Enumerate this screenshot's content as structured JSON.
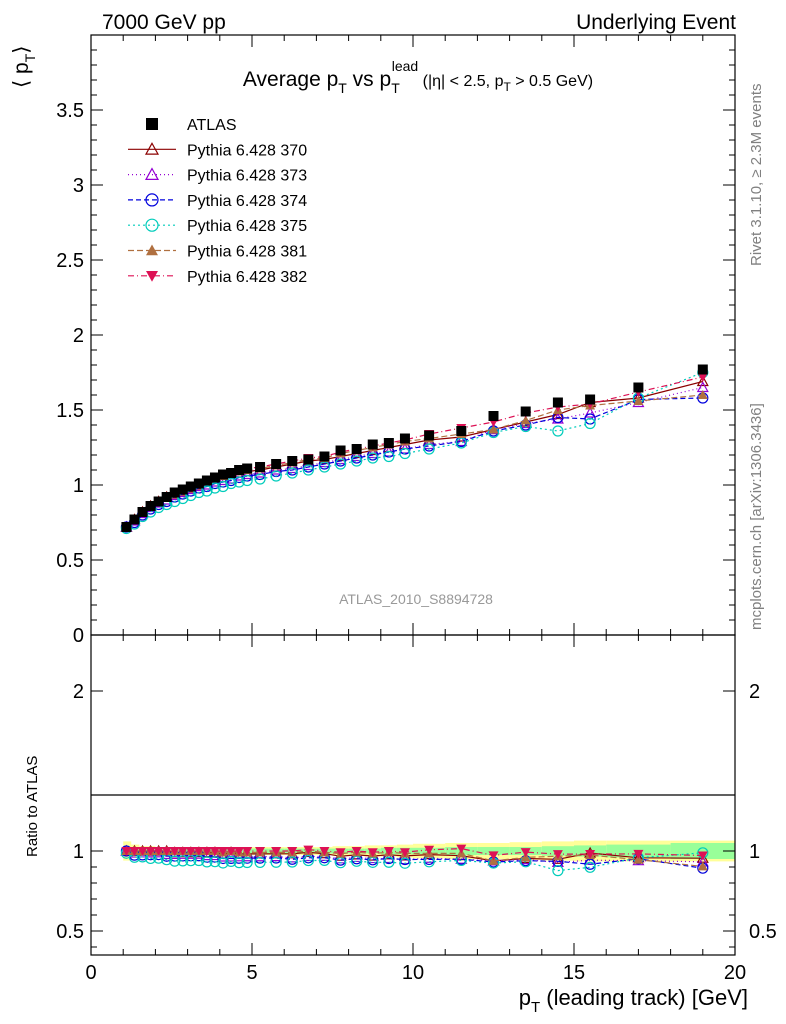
{
  "header": {
    "left": "7000 GeV pp",
    "right": "Underlying Event"
  },
  "side_labels": {
    "rivet": "Rivet 3.1.10, ≥ 2.3M events",
    "mcplots": "mcplots.cern.ch [arXiv:1306.3436]"
  },
  "analysis_id": "ATLAS_2010_S8894728",
  "colors": {
    "band_green": "#99ff99",
    "band_yellow": "#ffff99"
  },
  "chart_data": [
    {
      "type": "scatter",
      "title": {
        "main": "Average p",
        "main_sub": "T",
        "vs": " vs p",
        "vs_sub": "T",
        "vs_sup": "lead",
        "cut_a": " (|η| < 2.5, p",
        "cut_sub": "T",
        "cut_b": " > 0.5 GeV)"
      },
      "ylabel": {
        "main": "⟨ p",
        "sub": "T",
        "close": "⟩"
      },
      "xlim": [
        0,
        20
      ],
      "ylim": [
        0,
        4
      ],
      "yticks": [
        {
          "v": 0,
          "label": "0"
        },
        {
          "v": 0.5,
          "label": "0.5"
        },
        {
          "v": 1,
          "label": "1"
        },
        {
          "v": 1.5,
          "label": "1.5"
        },
        {
          "v": 2,
          "label": "2"
        },
        {
          "v": 2.5,
          "label": "2.5"
        },
        {
          "v": 3,
          "label": "3"
        },
        {
          "v": 3.5,
          "label": "3.5"
        }
      ],
      "legend_position": "top-left",
      "x": [
        1.1,
        1.35,
        1.6,
        1.85,
        2.1,
        2.35,
        2.6,
        2.85,
        3.1,
        3.35,
        3.6,
        3.85,
        4.1,
        4.35,
        4.6,
        4.85,
        5.25,
        5.75,
        6.25,
        6.75,
        7.25,
        7.75,
        8.25,
        8.75,
        9.25,
        9.75,
        10.5,
        11.5,
        12.5,
        13.5,
        14.5,
        15.5,
        17.0,
        19.0
      ],
      "series": [
        {
          "name": "ATLAS",
          "color": "#000000",
          "marker": "square",
          "dash": "",
          "values": [
            0.72,
            0.77,
            0.82,
            0.86,
            0.89,
            0.92,
            0.95,
            0.97,
            0.99,
            1.01,
            1.03,
            1.05,
            1.07,
            1.08,
            1.1,
            1.11,
            1.12,
            1.14,
            1.16,
            1.17,
            1.19,
            1.23,
            1.24,
            1.27,
            1.28,
            1.31,
            1.33,
            1.36,
            1.46,
            1.49,
            1.55,
            1.57,
            1.65,
            1.77
          ]
        },
        {
          "name": "Pythia 6.428 370",
          "color": "#8b0000",
          "marker": "triangle-open",
          "dash": "",
          "values": [
            0.72,
            0.77,
            0.82,
            0.86,
            0.89,
            0.92,
            0.94,
            0.96,
            0.98,
            1.0,
            1.02,
            1.04,
            1.05,
            1.07,
            1.08,
            1.09,
            1.1,
            1.12,
            1.14,
            1.16,
            1.17,
            1.19,
            1.21,
            1.23,
            1.25,
            1.27,
            1.3,
            1.32,
            1.37,
            1.42,
            1.47,
            1.55,
            1.58,
            1.69
          ]
        },
        {
          "name": "Pythia 6.428 373",
          "color": "#9400d3",
          "marker": "triangle-open",
          "dash": "1,3",
          "values": [
            0.72,
            0.76,
            0.81,
            0.85,
            0.88,
            0.9,
            0.93,
            0.95,
            0.97,
            0.99,
            1.0,
            1.02,
            1.03,
            1.04,
            1.06,
            1.07,
            1.08,
            1.1,
            1.11,
            1.13,
            1.15,
            1.17,
            1.19,
            1.21,
            1.22,
            1.24,
            1.27,
            1.29,
            1.37,
            1.41,
            1.44,
            1.48,
            1.55,
            1.65
          ]
        },
        {
          "name": "Pythia 6.428 374",
          "color": "#0000dd",
          "marker": "circle-open",
          "dash": "5,3",
          "values": [
            0.72,
            0.75,
            0.8,
            0.84,
            0.87,
            0.89,
            0.92,
            0.94,
            0.96,
            0.98,
            0.99,
            1.01,
            1.02,
            1.03,
            1.05,
            1.06,
            1.07,
            1.09,
            1.1,
            1.12,
            1.14,
            1.16,
            1.18,
            1.2,
            1.22,
            1.24,
            1.26,
            1.29,
            1.36,
            1.4,
            1.45,
            1.44,
            1.57,
            1.58
          ]
        },
        {
          "name": "Pythia 6.428 375",
          "color": "#00ccbb",
          "marker": "circle-open",
          "dash": "2,3",
          "values": [
            0.71,
            0.74,
            0.79,
            0.82,
            0.85,
            0.87,
            0.89,
            0.91,
            0.93,
            0.95,
            0.96,
            0.98,
            0.99,
            1.01,
            1.02,
            1.03,
            1.04,
            1.06,
            1.08,
            1.1,
            1.12,
            1.14,
            1.16,
            1.18,
            1.19,
            1.21,
            1.24,
            1.28,
            1.35,
            1.39,
            1.36,
            1.41,
            1.58,
            1.75
          ]
        },
        {
          "name": "Pythia 6.428 381",
          "color": "#b07040",
          "marker": "triangle-filled",
          "dash": "6,3",
          "values": [
            0.72,
            0.77,
            0.82,
            0.86,
            0.89,
            0.92,
            0.95,
            0.97,
            0.99,
            1.01,
            1.03,
            1.05,
            1.06,
            1.08,
            1.09,
            1.1,
            1.11,
            1.13,
            1.15,
            1.17,
            1.18,
            1.21,
            1.23,
            1.25,
            1.27,
            1.29,
            1.31,
            1.34,
            1.37,
            1.43,
            1.5,
            1.53,
            1.56,
            1.6
          ]
        },
        {
          "name": "Pythia 6.428 382",
          "color": "#dd1155",
          "marker": "triangle-down-filled",
          "dash": "6,3,1,3",
          "values": [
            0.72,
            0.77,
            0.82,
            0.86,
            0.89,
            0.92,
            0.95,
            0.97,
            0.99,
            1.01,
            1.03,
            1.05,
            1.07,
            1.08,
            1.1,
            1.11,
            1.12,
            1.14,
            1.16,
            1.18,
            1.19,
            1.22,
            1.24,
            1.26,
            1.28,
            1.3,
            1.34,
            1.38,
            1.42,
            1.48,
            1.52,
            1.54,
            1.62,
            1.72
          ]
        }
      ]
    },
    {
      "type": "scatter",
      "ylabel": "Ratio to ATLAS",
      "xlabel": {
        "main": "p",
        "sub": "T",
        "rest": " (leading track) [GeV]"
      },
      "xlim": [
        0,
        20
      ],
      "ylim": [
        0.35,
        2.35
      ],
      "xticks": [
        {
          "v": 0,
          "label": "0"
        },
        {
          "v": 5,
          "label": "5"
        },
        {
          "v": 10,
          "label": "10"
        },
        {
          "v": 15,
          "label": "15"
        },
        {
          "v": 20,
          "label": "20"
        }
      ],
      "yticks": [
        {
          "v": 0.5,
          "label": "0.5"
        },
        {
          "v": 1,
          "label": "1"
        },
        {
          "v": 2,
          "label": "2"
        }
      ],
      "reference_line": 1,
      "band_edges": [
        1.0,
        1.25,
        1.5,
        1.75,
        2.0,
        2.25,
        2.5,
        2.75,
        3.0,
        3.25,
        3.5,
        3.75,
        4.0,
        4.25,
        4.5,
        4.75,
        5.0,
        5.5,
        6.0,
        6.5,
        7.0,
        7.5,
        8.0,
        8.5,
        9.0,
        9.5,
        10.0,
        11.0,
        12.0,
        13.0,
        14.0,
        15.0,
        16.0,
        18.0,
        20.0
      ],
      "band_green": [
        0.025,
        0.02,
        0.015,
        0.015,
        0.015,
        0.015,
        0.015,
        0.015,
        0.015,
        0.015,
        0.015,
        0.015,
        0.015,
        0.015,
        0.015,
        0.015,
        0.015,
        0.015,
        0.015,
        0.015,
        0.015,
        0.015,
        0.015,
        0.015,
        0.02,
        0.02,
        0.02,
        0.025,
        0.025,
        0.025,
        0.03,
        0.035,
        0.04,
        0.05
      ],
      "band_yellow": [
        0.06,
        0.04,
        0.03,
        0.03,
        0.025,
        0.025,
        0.025,
        0.025,
        0.025,
        0.025,
        0.025,
        0.025,
        0.025,
        0.025,
        0.025,
        0.025,
        0.025,
        0.025,
        0.025,
        0.025,
        0.025,
        0.03,
        0.03,
        0.035,
        0.035,
        0.04,
        0.045,
        0.05,
        0.05,
        0.055,
        0.06,
        0.065,
        0.065,
        0.065
      ]
    }
  ]
}
